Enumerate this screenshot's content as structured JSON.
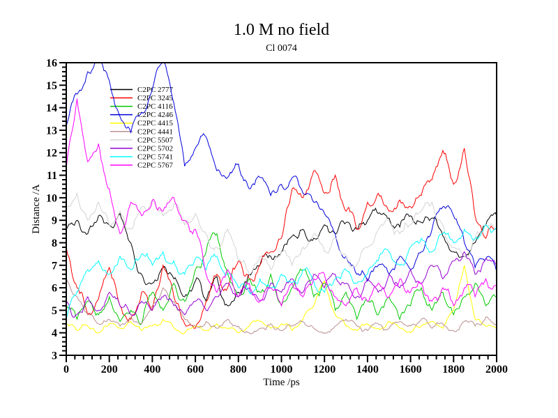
{
  "header": {
    "title": "1.0 M no field",
    "subtitle": "Cl 0074"
  },
  "chart_data": {
    "type": "line",
    "title": "1.0 M no field",
    "subtitle": "Cl 0074",
    "xlabel": "Time /ps",
    "ylabel": "Distance /A",
    "xlim": [
      0,
      2000
    ],
    "ylim": [
      3,
      16
    ],
    "x_major_step": 200,
    "x_minor_step": 40,
    "y_major_step": 1,
    "y_minor_step": 0.2,
    "grid": false,
    "legend_position": "upper-left-inside",
    "frame_color": "#000000",
    "x": [
      0,
      50,
      100,
      150,
      200,
      250,
      300,
      350,
      400,
      450,
      500,
      550,
      600,
      650,
      700,
      750,
      800,
      850,
      900,
      950,
      1000,
      1050,
      1100,
      1150,
      1200,
      1250,
      1300,
      1350,
      1400,
      1450,
      1500,
      1550,
      1600,
      1650,
      1700,
      1750,
      1800,
      1850,
      1900,
      1950,
      2000
    ],
    "series": [
      {
        "name": "C2PC 2777",
        "color": "#000000",
        "values": [
          8.6,
          9.0,
          8.4,
          9.2,
          8.8,
          9.3,
          8.0,
          6.6,
          6.2,
          6.9,
          6.4,
          5.6,
          6.3,
          5.4,
          6.5,
          5.2,
          5.8,
          6.6,
          7.0,
          7.4,
          7.6,
          8.3,
          8.6,
          8.2,
          8.8,
          8.4,
          8.9,
          8.6,
          9.0,
          9.3,
          9.1,
          8.7,
          9.2,
          8.9,
          9.1,
          8.3,
          7.6,
          7.4,
          8.0,
          8.8,
          9.2
        ]
      },
      {
        "name": "C2PC 3245",
        "color": "#ff0000",
        "values": [
          7.8,
          6.0,
          4.8,
          5.5,
          6.9,
          5.2,
          4.6,
          5.8,
          5.0,
          7.0,
          5.6,
          4.4,
          4.2,
          5.4,
          6.6,
          6.0,
          7.2,
          6.4,
          7.0,
          7.6,
          8.2,
          10.4,
          10.0,
          11.2,
          10.2,
          11.0,
          9.4,
          8.6,
          9.8,
          10.2,
          9.4,
          9.9,
          9.6,
          10.1,
          10.8,
          12.1,
          10.6,
          12.2,
          9.2,
          8.2,
          8.6
        ]
      },
      {
        "name": "C2PC 4116",
        "color": "#00c800",
        "values": [
          5.2,
          4.6,
          5.4,
          4.8,
          5.6,
          4.5,
          5.0,
          4.4,
          5.8,
          5.0,
          6.2,
          5.4,
          6.8,
          7.6,
          8.4,
          6.6,
          5.6,
          6.4,
          5.8,
          6.6,
          5.2,
          6.0,
          6.8,
          5.6,
          6.2,
          5.0,
          5.8,
          4.6,
          5.4,
          4.8,
          5.6,
          4.6,
          5.2,
          6.0,
          5.0,
          5.8,
          4.8,
          5.6,
          6.2,
          5.2,
          5.6
        ]
      },
      {
        "name": "C2PC 4246",
        "color": "#0000dd",
        "values": [
          13.2,
          14.6,
          15.6,
          16.3,
          15.2,
          13.6,
          12.9,
          13.8,
          14.8,
          16.2,
          14.2,
          11.4,
          12.2,
          12.7,
          11.2,
          10.9,
          11.5,
          10.4,
          10.9,
          10.1,
          10.6,
          10.9,
          10.2,
          9.8,
          9.3,
          8.4,
          7.4,
          6.6,
          6.3,
          7.0,
          6.6,
          7.4,
          6.8,
          7.6,
          8.6,
          9.6,
          9.2,
          8.0,
          6.9,
          7.3,
          6.7
        ]
      },
      {
        "name": "C2PC 4415",
        "color": "#ffff00",
        "values": [
          4.4,
          4.1,
          4.3,
          4.0,
          4.4,
          4.2,
          4.5,
          4.1,
          4.3,
          4.6,
          4.2,
          4.0,
          4.3,
          4.1,
          4.4,
          4.2,
          4.0,
          4.3,
          4.5,
          4.2,
          4.4,
          4.1,
          4.6,
          5.2,
          6.3,
          4.8,
          4.3,
          4.1,
          4.4,
          4.2,
          4.5,
          4.2,
          4.0,
          4.3,
          4.5,
          4.2,
          5.0,
          7.0,
          4.6,
          4.3,
          4.2
        ]
      },
      {
        "name": "C2PC 4441",
        "color": "#bc8f8f",
        "values": [
          6.4,
          5.6,
          4.8,
          4.4,
          4.6,
          4.3,
          4.7,
          4.4,
          5.2,
          6.0,
          5.4,
          4.6,
          4.3,
          4.5,
          4.2,
          4.6,
          4.3,
          4.0,
          4.2,
          4.4,
          4.1,
          4.3,
          4.5,
          4.2,
          4.0,
          4.3,
          4.6,
          4.3,
          4.1,
          4.4,
          4.2,
          4.5,
          4.3,
          4.6,
          4.2,
          4.4,
          4.1,
          4.5,
          4.3,
          4.7,
          4.4
        ]
      },
      {
        "name": "C2PC 5507",
        "color": "#d3d3d3",
        "values": [
          9.6,
          10.2,
          9.0,
          9.8,
          8.8,
          9.4,
          8.6,
          9.6,
          9.9,
          9.2,
          9.7,
          8.8,
          9.3,
          8.4,
          7.8,
          8.6,
          7.2,
          6.6,
          7.4,
          6.8,
          7.6,
          7.0,
          7.8,
          8.4,
          7.6,
          8.2,
          7.4,
          7.0,
          7.8,
          8.6,
          9.0,
          8.4,
          8.8,
          9.4,
          9.8,
          8.8,
          7.8,
          7.4,
          8.2,
          8.8,
          8.6
        ]
      },
      {
        "name": "C2PC 5702",
        "color": "#9400d3",
        "values": [
          5.4,
          4.8,
          5.6,
          5.0,
          5.8,
          5.2,
          4.8,
          5.4,
          5.0,
          5.6,
          5.2,
          4.8,
          5.4,
          5.0,
          5.6,
          6.2,
          5.6,
          6.0,
          5.4,
          6.2,
          5.8,
          6.4,
          5.8,
          6.6,
          6.0,
          6.6,
          6.2,
          5.6,
          6.4,
          5.8,
          6.6,
          6.0,
          6.8,
          6.2,
          7.0,
          6.4,
          7.2,
          7.6,
          6.6,
          7.3,
          7.0
        ]
      },
      {
        "name": "C2PC 5741",
        "color": "#00ffff",
        "values": [
          4.6,
          5.8,
          6.8,
          7.2,
          6.6,
          7.4,
          6.8,
          7.5,
          7.0,
          7.6,
          7.2,
          6.6,
          7.3,
          6.8,
          7.4,
          6.6,
          6.0,
          5.8,
          6.4,
          6.0,
          6.6,
          6.2,
          6.8,
          6.3,
          5.8,
          6.4,
          6.8,
          6.2,
          6.6,
          7.2,
          7.6,
          7.0,
          7.8,
          8.2,
          7.6,
          8.4,
          8.0,
          8.6,
          8.2,
          8.8,
          8.7
        ]
      },
      {
        "name": "C2PC 5767",
        "color": "#ff00ff",
        "values": [
          11.3,
          14.4,
          11.6,
          12.4,
          10.4,
          8.4,
          9.8,
          9.2,
          9.9,
          9.4,
          10.0,
          9.0,
          8.6,
          6.6,
          5.8,
          6.8,
          5.6,
          6.2,
          5.4,
          6.0,
          5.2,
          6.2,
          5.6,
          6.4,
          6.6,
          5.6,
          5.2,
          6.0,
          5.4,
          6.2,
          5.6,
          6.4,
          5.8,
          6.2,
          5.4,
          6.0,
          5.2,
          6.0,
          5.6,
          6.4,
          6.1
        ]
      }
    ]
  }
}
